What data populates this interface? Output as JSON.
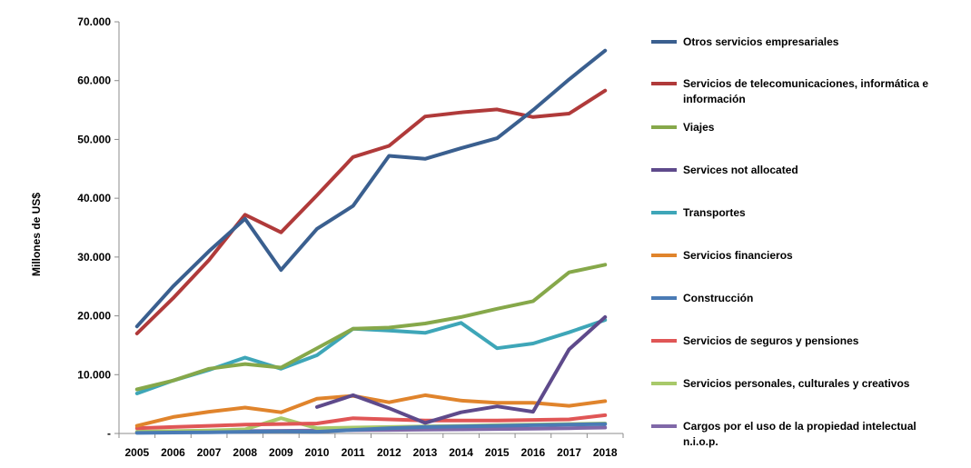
{
  "chart_data": {
    "type": "line",
    "title": "",
    "xlabel": "",
    "ylabel": "Millones de US$",
    "ylim": [
      0,
      70000
    ],
    "yticks": [
      {
        "value": 0,
        "label": "-"
      },
      {
        "value": 10000,
        "label": "10.000"
      },
      {
        "value": 20000,
        "label": "20.000"
      },
      {
        "value": 30000,
        "label": "30.000"
      },
      {
        "value": 40000,
        "label": "40.000"
      },
      {
        "value": 50000,
        "label": "50.000"
      },
      {
        "value": 60000,
        "label": "60.000"
      },
      {
        "value": 70000,
        "label": "70.000"
      }
    ],
    "grid": false,
    "legend_position": "right",
    "categories": [
      "2005",
      "2006",
      "2007",
      "2008",
      "2009",
      "2010",
      "2011",
      "2012",
      "2013",
      "2014",
      "2015",
      "2016",
      "2017",
      "2018"
    ],
    "series": [
      {
        "name": "Otros servicios empresariales",
        "color": "#3A5F8F",
        "values": [
          18200,
          25000,
          31000,
          36500,
          27800,
          34800,
          38700,
          47200,
          46700,
          48500,
          50200,
          55000,
          60200,
          65100
        ]
      },
      {
        "name": "Servicios de telecomunicaciones, informática e información",
        "color": "#B03A3A",
        "values": [
          17000,
          23000,
          29500,
          37200,
          34200,
          40500,
          47000,
          48900,
          53900,
          54600,
          55100,
          53800,
          54400,
          58300
        ]
      },
      {
        "name": "Viajes",
        "color": "#86A84A",
        "values": [
          7500,
          9000,
          11000,
          11800,
          11200,
          14500,
          17800,
          18000,
          18700,
          19800,
          21200,
          22500,
          27400,
          28700
        ]
      },
      {
        "name": "Services not allocated",
        "color": "#5E4A8B",
        "values": [
          null,
          null,
          null,
          null,
          null,
          4500,
          6500,
          4300,
          1800,
          3600,
          4600,
          3700,
          14300,
          19800
        ]
      },
      {
        "name": "Transportes",
        "color": "#3EA6B8",
        "values": [
          6800,
          9000,
          10800,
          12900,
          11000,
          13300,
          17800,
          17500,
          17100,
          18800,
          14500,
          15300,
          17200,
          19300
        ]
      },
      {
        "name": "Servicios financieros",
        "color": "#E0842C",
        "values": [
          1300,
          2800,
          3700,
          4400,
          3600,
          5900,
          6400,
          5300,
          6500,
          5600,
          5200,
          5200,
          4700,
          5500
        ]
      },
      {
        "name": "Construcción",
        "color": "#4A7BB5",
        "values": [
          100,
          150,
          200,
          300,
          350,
          300,
          600,
          900,
          1100,
          1200,
          1300,
          1400,
          1500,
          1600
        ]
      },
      {
        "name": "Servicios de seguros y pensiones",
        "color": "#E05656",
        "values": [
          900,
          1100,
          1300,
          1500,
          1600,
          1700,
          2600,
          2400,
          2200,
          2200,
          2200,
          2300,
          2400,
          3100
        ]
      },
      {
        "name": "Servicios personales, culturales y creativos",
        "color": "#A8C96A",
        "values": [
          300,
          400,
          500,
          700,
          2600,
          900,
          1000,
          1100,
          1200,
          1300,
          1400,
          1500,
          1600,
          1700
        ]
      },
      {
        "name": "Cargos por el uso de la propiedad intelectual n.i.o.p.",
        "color": "#8068A8",
        "values": [
          200,
          250,
          300,
          400,
          450,
          500,
          550,
          600,
          650,
          700,
          750,
          800,
          900,
          1000
        ]
      }
    ]
  },
  "legend_lines": [
    [
      "Otros servicios empresariales"
    ],
    [
      "Servicios de telecomunicaciones, informática e",
      "información"
    ],
    [
      "Viajes"
    ],
    [
      "Services not allocated"
    ],
    [
      "Transportes"
    ],
    [
      "Servicios financieros"
    ],
    [
      "Construcción"
    ],
    [
      "Servicios de seguros y pensiones"
    ],
    [
      "Servicios personales, culturales y creativos"
    ],
    [
      "Cargos por el uso de la propiedad intelectual",
      "n.i.o.p."
    ]
  ]
}
